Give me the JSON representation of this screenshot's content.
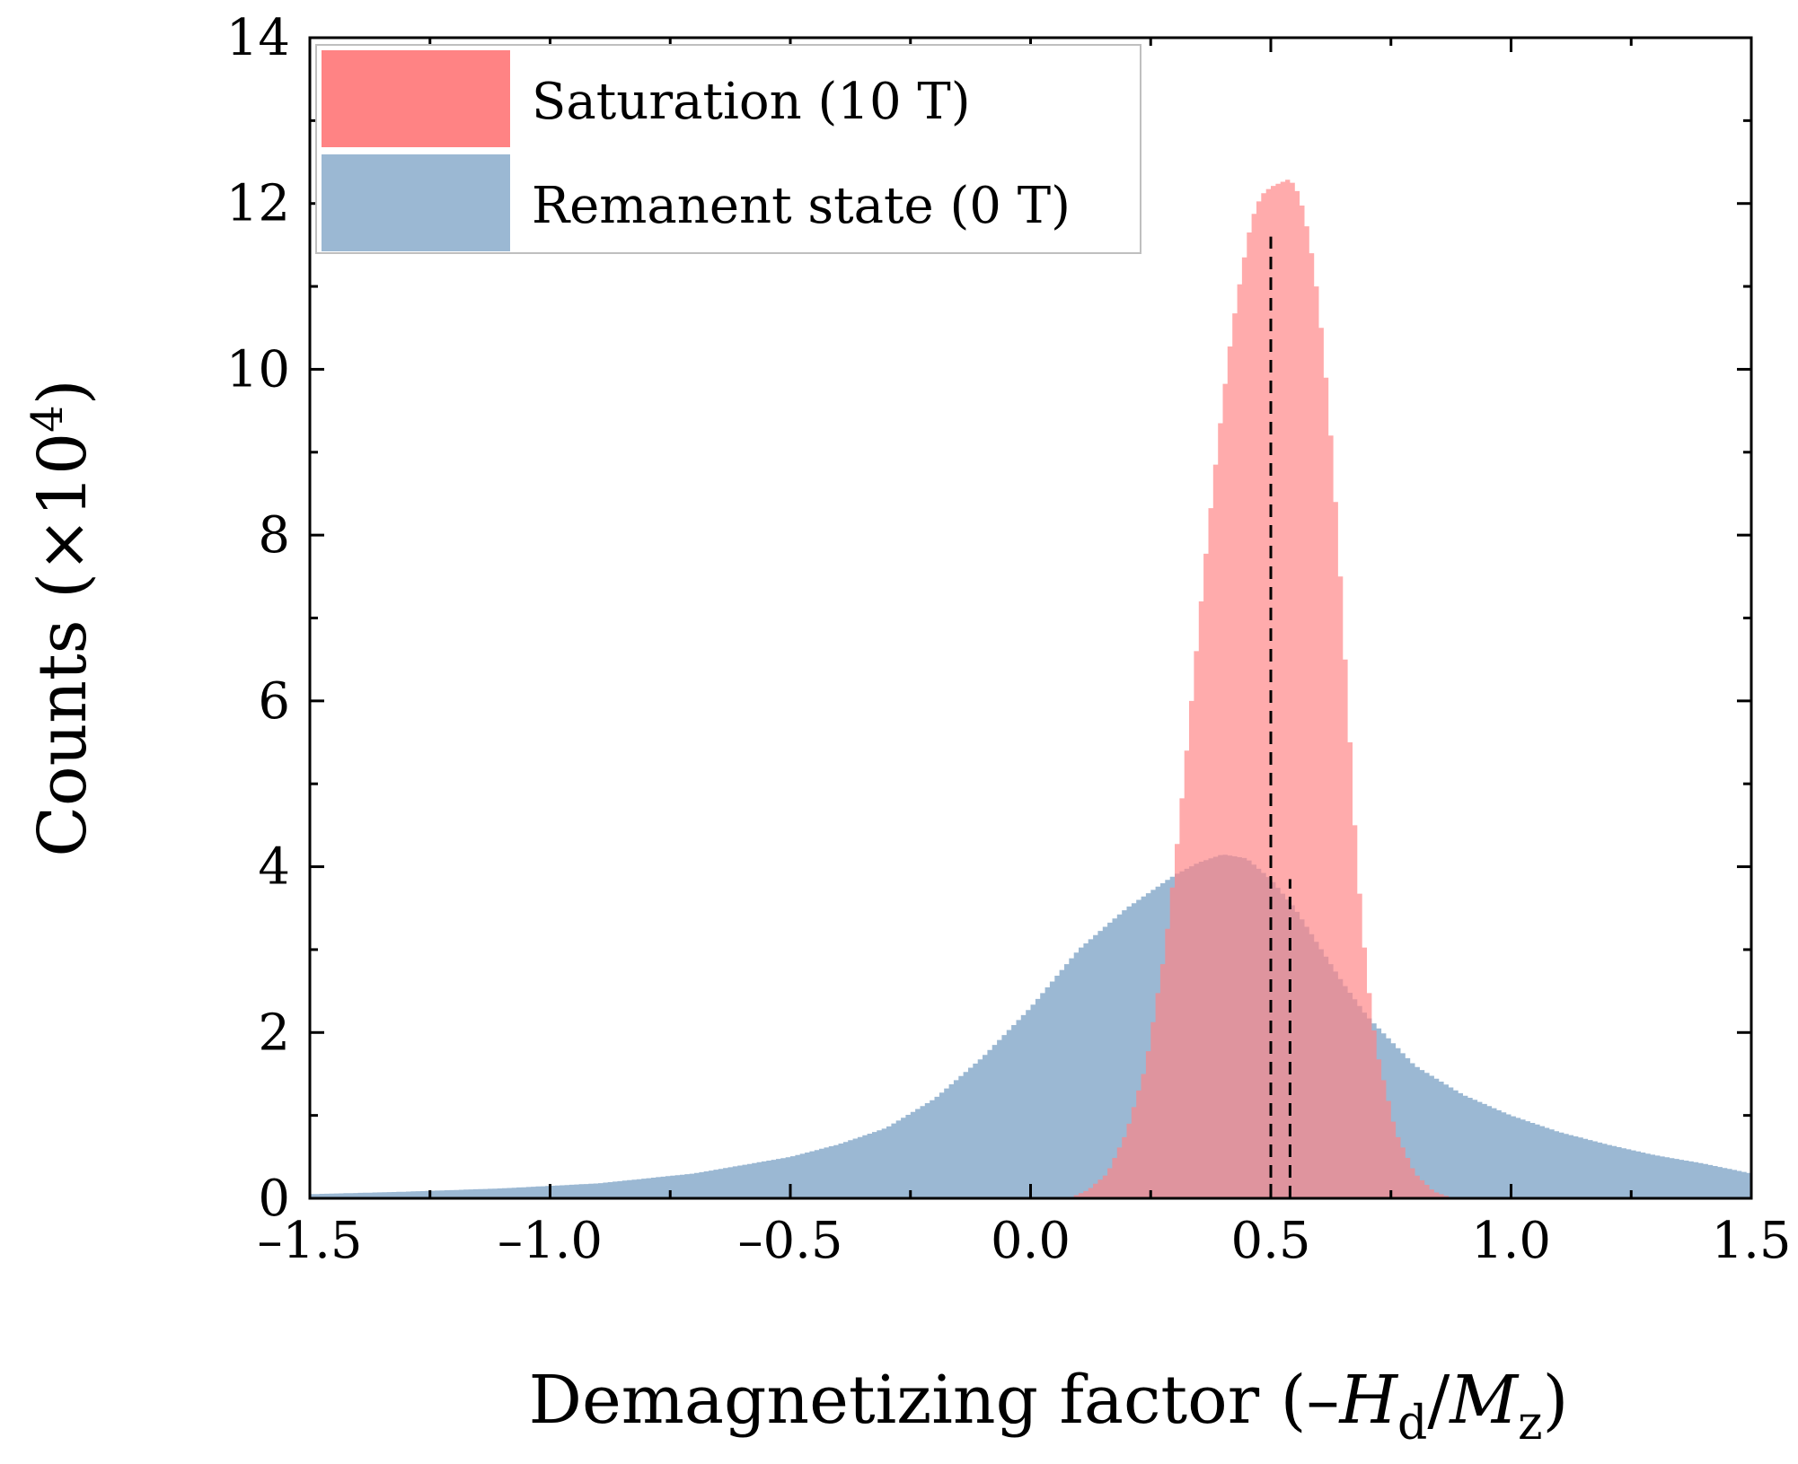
{
  "chart_data": {
    "type": "area",
    "title": "",
    "xlabel": {
      "prefix": "Demagnetizing factor (–",
      "var1": "H",
      "sub1": "d",
      "slash": "/",
      "var2": "M",
      "sub2": "z",
      "suffix": ")"
    },
    "ylabel": {
      "text": "Counts (×10",
      "sup": "4",
      "suffix": ")"
    },
    "xlim": [
      -1.5,
      1.5
    ],
    "ylim": [
      0,
      14
    ],
    "xticks": [
      -1.5,
      -1.0,
      -0.5,
      0.0,
      0.5,
      1.0,
      1.5
    ],
    "xtick_labels": [
      "–1.5",
      "–1.0",
      "–0.5",
      "0.0",
      "0.5",
      "1.0",
      "1.5"
    ],
    "yticks": [
      0,
      2,
      4,
      6,
      8,
      10,
      12,
      14
    ],
    "ytick_labels": [
      "0",
      "2",
      "4",
      "6",
      "8",
      "10",
      "12",
      "14"
    ],
    "legend_position": "top-left",
    "series": [
      {
        "name": "Saturation (10 T)",
        "color": "#ff8384",
        "mean": 0.5,
        "x": [
          0.08,
          0.12,
          0.16,
          0.2,
          0.24,
          0.28,
          0.3,
          0.32,
          0.34,
          0.36,
          0.38,
          0.4,
          0.42,
          0.44,
          0.46,
          0.48,
          0.5,
          0.52,
          0.54,
          0.56,
          0.58,
          0.6,
          0.62,
          0.64,
          0.66,
          0.68,
          0.7,
          0.72,
          0.76,
          0.8,
          0.84,
          0.88
        ],
        "y": [
          0.0,
          0.1,
          0.3,
          0.8,
          1.6,
          3.0,
          4.0,
          5.1,
          6.3,
          7.5,
          8.6,
          9.6,
          10.5,
          11.2,
          11.8,
          12.1,
          12.2,
          12.25,
          12.3,
          12.1,
          11.6,
          10.8,
          9.6,
          8.0,
          6.0,
          4.0,
          2.7,
          1.8,
          0.8,
          0.3,
          0.08,
          0.0
        ]
      },
      {
        "name": "Remanent state (0 T)",
        "color": "#9bb8d3",
        "mean": 0.54,
        "x": [
          -1.5,
          -1.3,
          -1.1,
          -0.9,
          -0.7,
          -0.5,
          -0.4,
          -0.3,
          -0.2,
          -0.1,
          0.0,
          0.1,
          0.2,
          0.3,
          0.35,
          0.4,
          0.45,
          0.5,
          0.55,
          0.6,
          0.65,
          0.7,
          0.8,
          0.9,
          1.0,
          1.1,
          1.2,
          1.3,
          1.4,
          1.5
        ],
        "y": [
          0.05,
          0.08,
          0.12,
          0.18,
          0.3,
          0.5,
          0.65,
          0.85,
          1.2,
          1.7,
          2.3,
          3.0,
          3.5,
          3.9,
          4.05,
          4.15,
          4.1,
          3.85,
          3.5,
          3.05,
          2.6,
          2.2,
          1.6,
          1.25,
          1.0,
          0.8,
          0.65,
          0.52,
          0.42,
          0.3
        ]
      }
    ],
    "dashed_lines": [
      {
        "series": "Saturation (10 T)",
        "x": 0.5,
        "y_top": 11.6
      },
      {
        "series": "Remanent state (0 T)",
        "x": 0.54,
        "y_top": 3.85
      }
    ]
  }
}
